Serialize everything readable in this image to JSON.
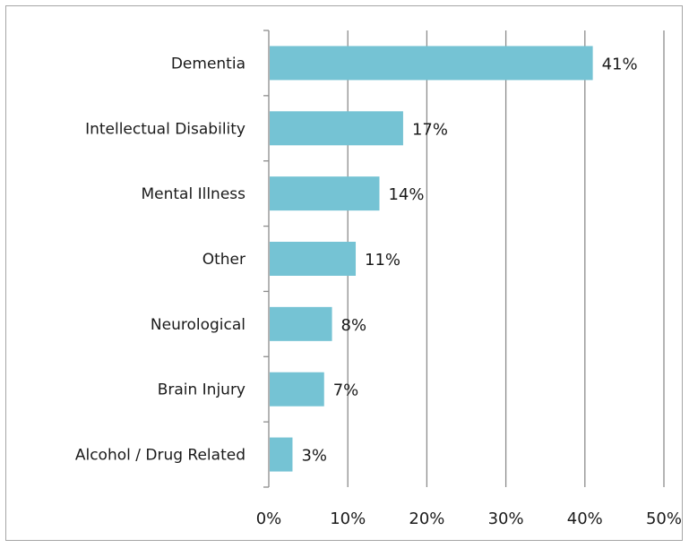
{
  "chart_data": {
    "type": "bar",
    "orientation": "horizontal",
    "title": "",
    "xlabel": "",
    "ylabel": "",
    "categories": [
      "Dementia",
      "Intellectual Disability",
      "Mental Illness",
      "Other",
      "Neurological",
      "Brain Injury",
      "Alcohol / Drug Related"
    ],
    "values": [
      41,
      17,
      14,
      11,
      8,
      7,
      3
    ],
    "data_labels": [
      "41%",
      "17%",
      "14%",
      "11%",
      "8%",
      "7%",
      "3%"
    ],
    "xlim": [
      0,
      50
    ],
    "x_ticks": [
      0,
      10,
      20,
      30,
      40,
      50
    ],
    "x_tick_labels": [
      "0%",
      "10%",
      "20%",
      "30%",
      "40%",
      "50%"
    ],
    "grid": "vertical major gridlines",
    "legend": "none",
    "bar_color": "#75c3d4",
    "gridline_color": "#8c8c8c"
  }
}
